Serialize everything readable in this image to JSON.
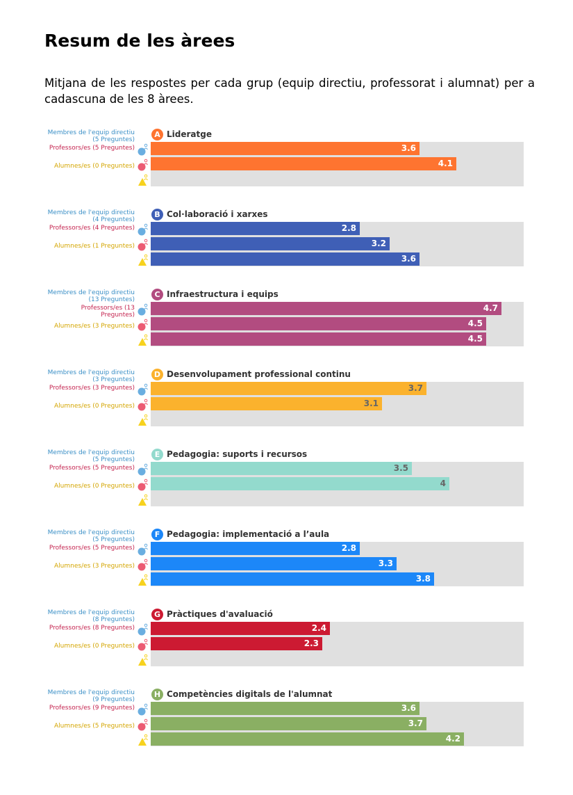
{
  "page": {
    "title": "Resum de les àrees",
    "subtitle": "Mitjana de les respostes per cada grup (equip directiu, professorat i alumnat) per a cadascuna de les 8 àrees."
  },
  "colors": {
    "leaders": "#3a8fc6",
    "teachers": "#c4244f",
    "students": "#d4a500",
    "leaders_icon": "#6aaee0",
    "teachers_icon": "#ec5b73",
    "students_icon": "#f7d21e",
    "track": "#e0e0e0"
  },
  "chart_data": {
    "type": "bar",
    "orientation": "horizontal",
    "xlim": [
      0,
      5
    ],
    "series_groups": [
      "leaders",
      "teachers",
      "students"
    ],
    "areas": [
      {
        "letter": "A",
        "name": "Lideratge",
        "color": "#fe7430",
        "text_color": "#ffffff",
        "rows": [
          {
            "group": "leaders",
            "label_line1": "Membres de l'equip directiu",
            "label_line2": "(5 Preguntes)",
            "value": 3.6,
            "value_label": "3.6"
          },
          {
            "group": "teachers",
            "label_line1": "Professors/es (5 Preguntes)",
            "label_line2": "",
            "value": 4.1,
            "value_label": "4.1"
          },
          {
            "group": "students",
            "label_line1": "Alumnes/es (0 Preguntes)",
            "label_line2": "",
            "value": null,
            "value_label": ""
          }
        ]
      },
      {
        "letter": "B",
        "name": "Col·laboració i xarxes",
        "color": "#3f5fb6",
        "text_color": "#ffffff",
        "rows": [
          {
            "group": "leaders",
            "label_line1": "Membres de l'equip directiu",
            "label_line2": "(4 Preguntes)",
            "value": 2.8,
            "value_label": "2.8"
          },
          {
            "group": "teachers",
            "label_line1": "Professors/es (4 Preguntes)",
            "label_line2": "",
            "value": 3.2,
            "value_label": "3.2"
          },
          {
            "group": "students",
            "label_line1": "Alumnes/es (1 Preguntes)",
            "label_line2": "",
            "value": 3.6,
            "value_label": "3.6"
          }
        ]
      },
      {
        "letter": "C",
        "name": "Infraestructura i equips",
        "color": "#b24c80",
        "text_color": "#ffffff",
        "rows": [
          {
            "group": "leaders",
            "label_line1": "Membres de l'equip directiu",
            "label_line2": "(13 Preguntes)",
            "value": 4.7,
            "value_label": "4.7"
          },
          {
            "group": "teachers",
            "label_line1": "Professors/es (13",
            "label_line2": "Preguntes)",
            "value": 4.5,
            "value_label": "4.5"
          },
          {
            "group": "students",
            "label_line1": "Alumnes/es (3 Preguntes)",
            "label_line2": "",
            "value": 4.5,
            "value_label": "4.5"
          }
        ]
      },
      {
        "letter": "D",
        "name": "Desenvolupament professional continu",
        "color": "#fbb22d",
        "text_color": "#666666",
        "rows": [
          {
            "group": "leaders",
            "label_line1": "Membres de l'equip directiu",
            "label_line2": "(3 Preguntes)",
            "value": 3.7,
            "value_label": "3.7"
          },
          {
            "group": "teachers",
            "label_line1": "Professors/es (3 Preguntes)",
            "label_line2": "",
            "value": 3.1,
            "value_label": "3.1"
          },
          {
            "group": "students",
            "label_line1": "Alumnes/es (0 Preguntes)",
            "label_line2": "",
            "value": null,
            "value_label": ""
          }
        ]
      },
      {
        "letter": "E",
        "name": "Pedagogia: suports i recursos",
        "color": "#93dacd",
        "text_color": "#666666",
        "rows": [
          {
            "group": "leaders",
            "label_line1": "Membres de l'equip directiu",
            "label_line2": "(5 Preguntes)",
            "value": 3.5,
            "value_label": "3.5"
          },
          {
            "group": "teachers",
            "label_line1": "Professors/es (5 Preguntes)",
            "label_line2": "",
            "value": 4.0,
            "value_label": "4"
          },
          {
            "group": "students",
            "label_line1": "Alumnes/es (0 Preguntes)",
            "label_line2": "",
            "value": null,
            "value_label": ""
          }
        ]
      },
      {
        "letter": "F",
        "name": "Pedagogia: implementació a l’aula",
        "color": "#1c87f8",
        "text_color": "#ffffff",
        "rows": [
          {
            "group": "leaders",
            "label_line1": "Membres de l'equip directiu",
            "label_line2": "(5 Preguntes)",
            "value": 2.8,
            "value_label": "2.8"
          },
          {
            "group": "teachers",
            "label_line1": "Professors/es (5 Preguntes)",
            "label_line2": "",
            "value": 3.3,
            "value_label": "3.3"
          },
          {
            "group": "students",
            "label_line1": "Alumnes/es (3 Preguntes)",
            "label_line2": "",
            "value": 3.8,
            "value_label": "3.8"
          }
        ]
      },
      {
        "letter": "G",
        "name": "Pràctiques d'avaluació",
        "color": "#cc1a32",
        "text_color": "#ffffff",
        "rows": [
          {
            "group": "leaders",
            "label_line1": "Membres de l'equip directiu",
            "label_line2": "(8 Preguntes)",
            "value": 2.4,
            "value_label": "2.4"
          },
          {
            "group": "teachers",
            "label_line1": "Professors/es (8 Preguntes)",
            "label_line2": "",
            "value": 2.3,
            "value_label": "2.3"
          },
          {
            "group": "students",
            "label_line1": "Alumnes/es (0 Preguntes)",
            "label_line2": "",
            "value": null,
            "value_label": ""
          }
        ]
      },
      {
        "letter": "H",
        "name": "Competències digitals de l'alumnat",
        "color": "#8aaf63",
        "text_color": "#ffffff",
        "rows": [
          {
            "group": "leaders",
            "label_line1": "Membres de l'equip directiu",
            "label_line2": "(9 Preguntes)",
            "value": 3.6,
            "value_label": "3.6"
          },
          {
            "group": "teachers",
            "label_line1": "Professors/es (9 Preguntes)",
            "label_line2": "",
            "value": 3.7,
            "value_label": "3.7"
          },
          {
            "group": "students",
            "label_line1": "Alumnes/es (5 Preguntes)",
            "label_line2": "",
            "value": 4.2,
            "value_label": "4.2"
          }
        ]
      }
    ]
  }
}
